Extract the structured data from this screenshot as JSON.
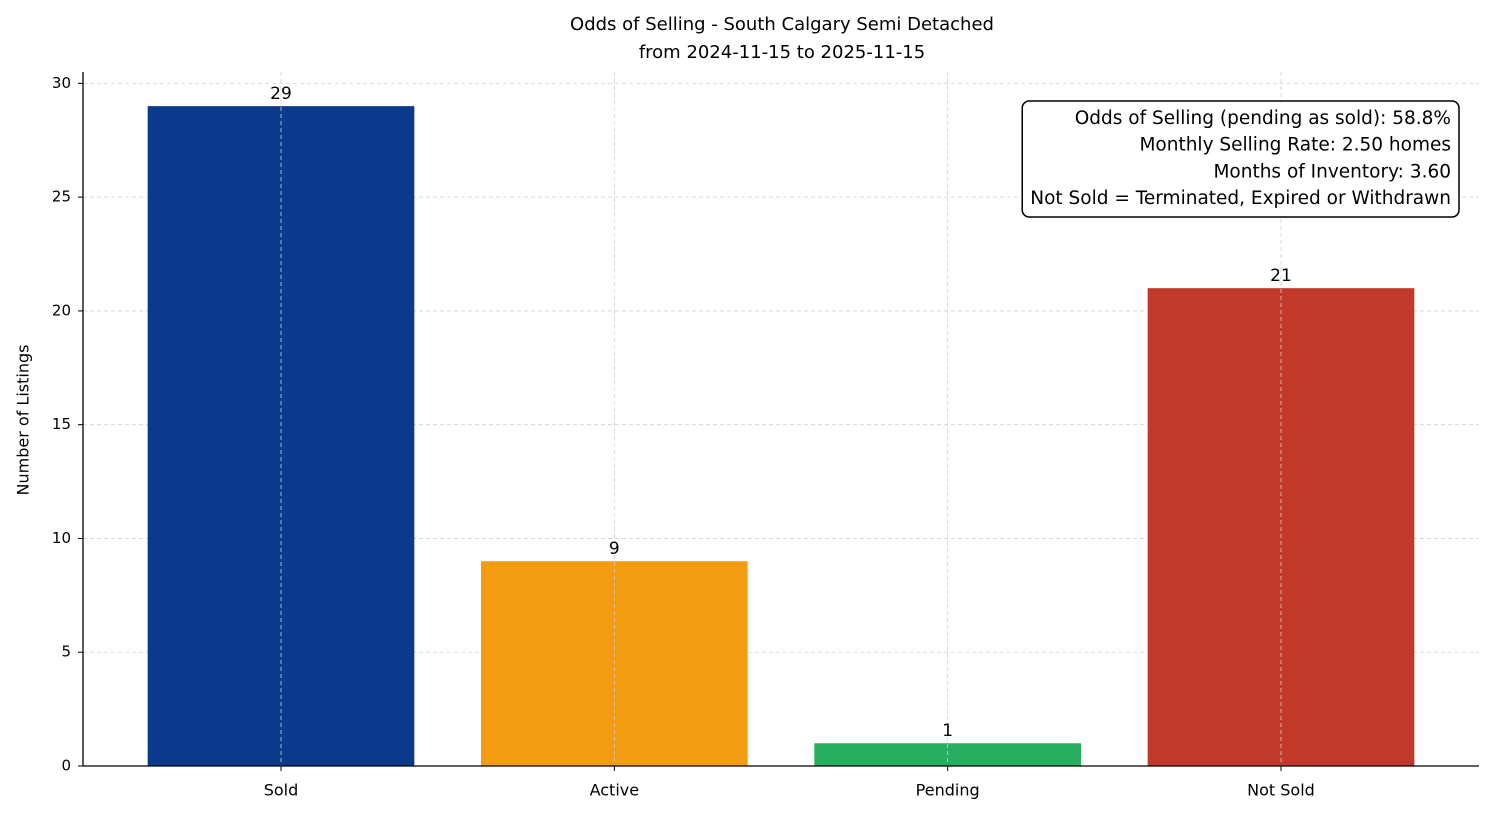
{
  "chart_data": {
    "type": "bar",
    "title": "Odds of Selling - South Calgary Semi Detached",
    "subtitle": "from 2024-11-15 to 2025-11-15",
    "y_label": "Number of Listings",
    "categories": [
      "Sold",
      "Active",
      "Pending",
      "Not Sold"
    ],
    "values": [
      29,
      9,
      1,
      21
    ],
    "colors": [
      "#0b3a8c",
      "#f39c12",
      "#27ae60",
      "#c0392b"
    ],
    "ylim": [
      0,
      30.5
    ],
    "yticks": [
      0,
      5,
      10,
      15,
      20,
      25,
      30
    ],
    "grid": true,
    "annotation": [
      "Odds of Selling (pending as sold): 58.8%",
      "Monthly Selling Rate: 2.50 homes",
      "Months of Inventory: 3.60",
      "Not Sold = Terminated, Expired or Withdrawn"
    ]
  }
}
